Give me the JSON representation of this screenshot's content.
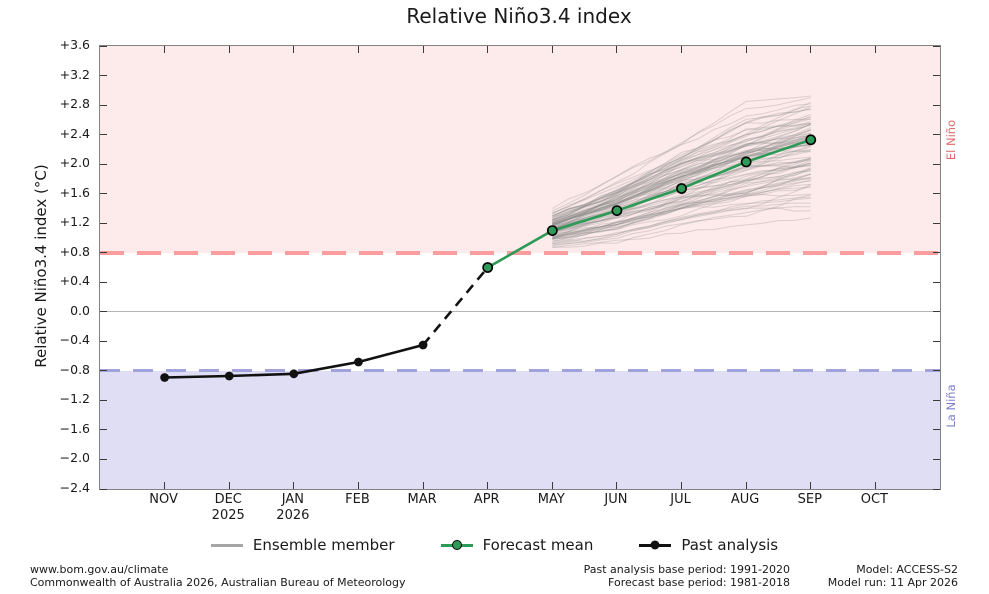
{
  "title": "Relative Niño3.4 index",
  "y_axis": {
    "label": "Relative Niño3.4 index (°C)",
    "tick_labels": [
      "+3.6",
      "+3.2",
      "+2.8",
      "+2.4",
      "+2.0",
      "+1.6",
      "+1.2",
      "+0.8",
      "+0.4",
      "0.0",
      "−0.4",
      "−0.8",
      "−1.2",
      "−1.6",
      "−2.0",
      "−2.4"
    ]
  },
  "x_axis": {
    "months": [
      {
        "label": "NOV",
        "year": ""
      },
      {
        "label": "DEC",
        "year": "2025"
      },
      {
        "label": "JAN",
        "year": "2026"
      },
      {
        "label": "FEB",
        "year": ""
      },
      {
        "label": "MAR",
        "year": ""
      },
      {
        "label": "APR",
        "year": ""
      },
      {
        "label": "MAY",
        "year": ""
      },
      {
        "label": "JUN",
        "year": ""
      },
      {
        "label": "JUL",
        "year": ""
      },
      {
        "label": "AUG",
        "year": ""
      },
      {
        "label": "SEP",
        "year": ""
      },
      {
        "label": "OCT",
        "year": ""
      }
    ]
  },
  "regions": {
    "el_nino": {
      "label": "El Niño",
      "threshold": 0.8
    },
    "la_nina": {
      "label": "La Niña",
      "threshold": -0.8
    }
  },
  "legend": {
    "items": [
      {
        "label": "Ensemble member",
        "swatch": "gray-line"
      },
      {
        "label": "Forecast mean",
        "swatch": "green-line-circle"
      },
      {
        "label": "Past analysis",
        "swatch": "black-line-dot"
      }
    ]
  },
  "footer": {
    "left_line1": "www.bom.gov.au/climate",
    "left_line2": "Commonwealth of Australia 2026, Australian Bureau of Meteorology",
    "center_line1": "Past analysis base period: 1991-2020",
    "center_line2": "Forecast base period: 1981-2018",
    "right_line1": "Model: ACCESS-S2",
    "right_line2": "Model run: 11 Apr 2026"
  },
  "colors": {
    "pink_band": "#fdeaea",
    "blue_band": "#e0def5",
    "red_line": "#fb9d9d",
    "blue_line": "#a2a2dc",
    "red_text": "#e06a6a",
    "blue_text": "#7a7fc9",
    "forecast_green": "#2d9b57",
    "past_black": "#111111",
    "ensemble_gray": "#8c8c8c",
    "zero_line": "#b4b4b4",
    "spine": "#828282"
  },
  "chart_data": {
    "type": "line",
    "title": "Relative Niño3.4 index",
    "xlabel": "",
    "ylabel": "Relative Niño3.4 index (°C)",
    "ylim": [
      -2.4,
      3.6
    ],
    "ytick_step": 0.4,
    "grid": false,
    "legend_position": "bottom-center",
    "x_categories": [
      "NOV",
      "DEC",
      "JAN",
      "FEB",
      "MAR",
      "APR",
      "MAY",
      "JUN",
      "JUL",
      "AUG",
      "SEP",
      "OCT"
    ],
    "thresholds": {
      "el_nino": 0.8,
      "la_nina": -0.8,
      "zero": 0.0
    },
    "series": [
      {
        "name": "Past analysis",
        "style": "black-solid-filled-dots",
        "x": [
          "NOV",
          "DEC",
          "JAN",
          "FEB",
          "MAR"
        ],
        "values": [
          -0.89,
          -0.87,
          -0.84,
          -0.68,
          -0.45
        ]
      },
      {
        "name": "Past to forecast transition",
        "style": "black-dashed",
        "x": [
          "MAR",
          "APR"
        ],
        "values": [
          -0.45,
          0.6
        ]
      },
      {
        "name": "Forecast mean",
        "style": "green-solid-open-circles",
        "x": [
          "APR",
          "MAY",
          "JUN",
          "JUL",
          "AUG",
          "SEP"
        ],
        "values": [
          0.6,
          1.1,
          1.37,
          1.67,
          2.03,
          2.33
        ]
      },
      {
        "name": "Ensemble member",
        "style": "gray-fan",
        "count": 90,
        "x": [
          "MAY",
          "JUN",
          "JUL",
          "AUG",
          "SEP"
        ],
        "envelope_min": [
          0.84,
          0.93,
          1.08,
          1.2,
          1.3
        ],
        "envelope_max": [
          1.42,
          1.88,
          2.4,
          2.82,
          3.1
        ]
      }
    ]
  }
}
